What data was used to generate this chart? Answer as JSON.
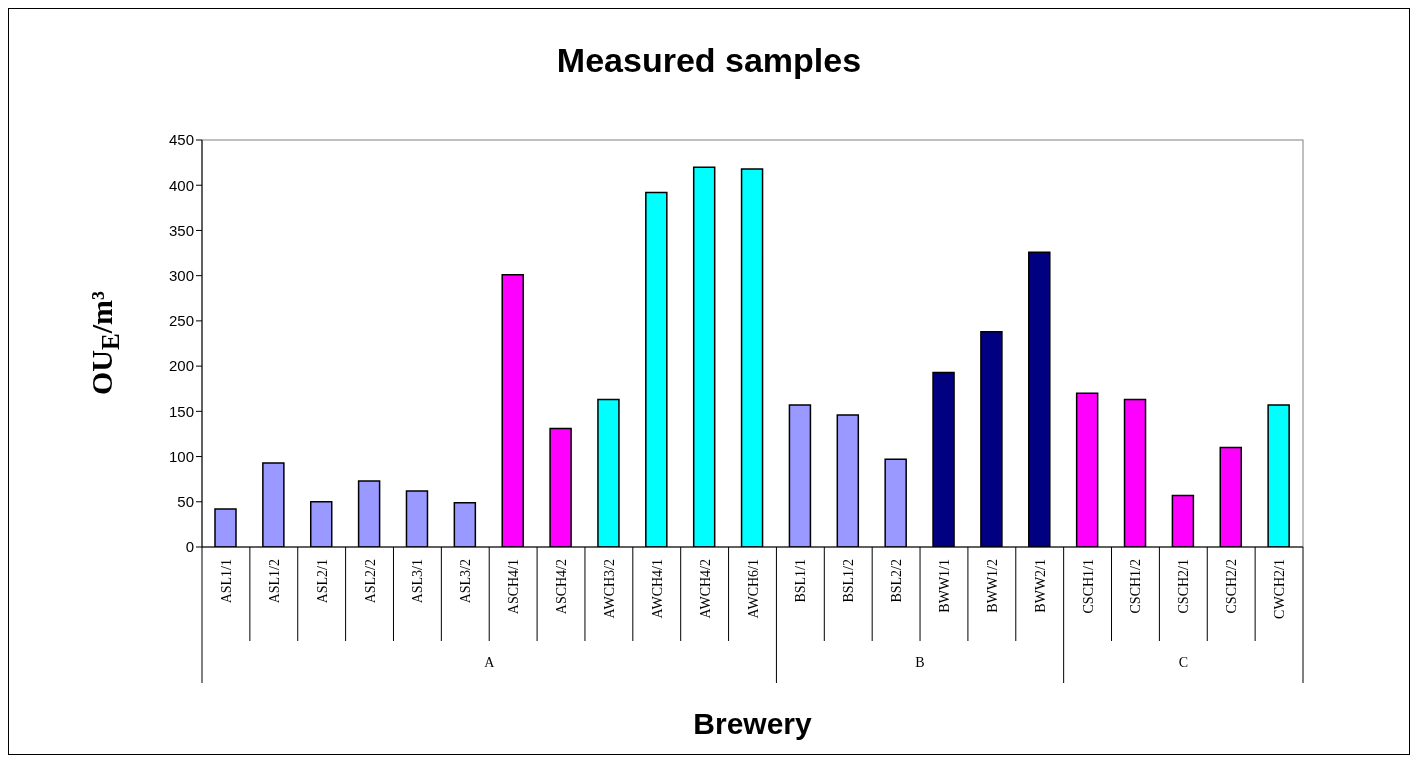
{
  "chart_data": {
    "type": "bar",
    "title": "Measured samples",
    "xlabel": "Brewery",
    "ylabel": "OU$_{E}$/m³",
    "categories": [
      "ASL1/1",
      "ASL1/2",
      "ASL2/1",
      "ASL2/2",
      "ASL3/1",
      "ASL3/2",
      "ASCH4/1",
      "ASCH4/2",
      "AWCH3/2",
      "AWCH4/1",
      "AWCH4/2",
      "AWCH6/1",
      "BSL1/1",
      "BSL1/2",
      "BSL2/2",
      "BWW1/1",
      "BWW1/2",
      "BWW2/1",
      "CSCH1/1",
      "CSCH1/2",
      "CSCH2/1",
      "CSCH2/2",
      "CWCH2/1"
    ],
    "values": [
      42,
      93,
      50,
      73,
      62,
      49,
      301,
      131,
      163,
      392,
      420,
      418,
      157,
      146,
      97,
      193,
      238,
      326,
      170,
      163,
      57,
      110,
      157
    ],
    "colors": [
      "#9999ff",
      "#9999ff",
      "#9999ff",
      "#9999ff",
      "#9999ff",
      "#9999ff",
      "#ff00ff",
      "#ff00ff",
      "#00ffff",
      "#00ffff",
      "#00ffff",
      "#00ffff",
      "#9999ff",
      "#9999ff",
      "#9999ff",
      "#000080",
      "#000080",
      "#000080",
      "#ff00ff",
      "#ff00ff",
      "#ff00ff",
      "#ff00ff",
      "#00ffff"
    ],
    "ylim": [
      0,
      450
    ],
    "yticks": [
      0,
      50,
      100,
      150,
      200,
      250,
      300,
      350,
      400,
      450
    ],
    "annotations": [
      "A",
      "B",
      "C"
    ]
  }
}
